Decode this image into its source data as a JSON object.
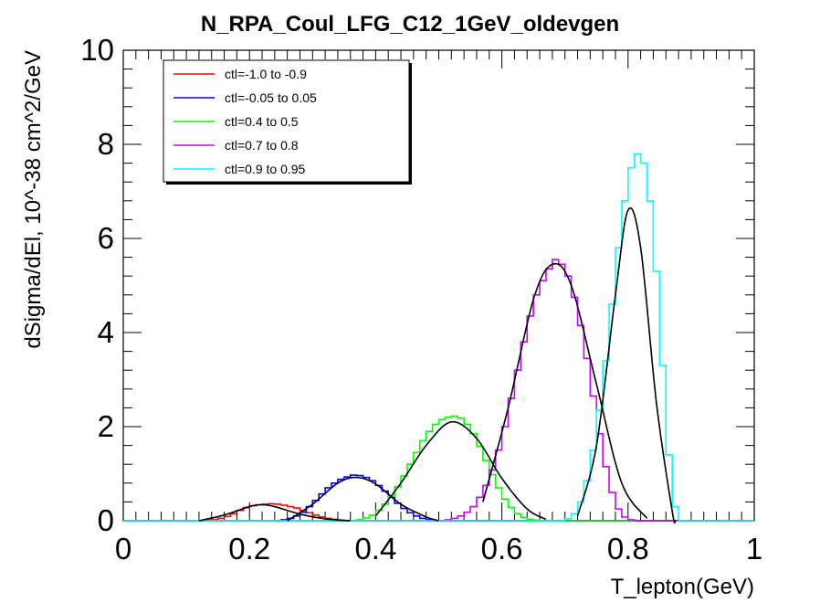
{
  "chart_data": {
    "type": "line",
    "title": "N_RPA_Coul_LFG_C12_1GeV_oldevgen",
    "xlabel": "T_lepton(GeV)",
    "ylabel": "dSigma/dEl, 10^-38 cm^2/GeV",
    "xlim": [
      0,
      1
    ],
    "ylim": [
      0,
      10
    ],
    "x_ticks": [
      "0",
      "0.2",
      "0.4",
      "0.6",
      "0.8",
      "1"
    ],
    "y_ticks": [
      "0",
      "2",
      "4",
      "6",
      "8",
      "10"
    ],
    "legend_placement": "top-left",
    "bin_width": 0.01,
    "series": [
      {
        "name": "ctl=-1.0 to -0.9",
        "color": "#ff0000",
        "style": "step",
        "x_start": 0.12,
        "values": [
          0.0,
          0.01,
          0.02,
          0.05,
          0.09,
          0.15,
          0.22,
          0.28,
          0.32,
          0.34,
          0.35,
          0.36,
          0.35,
          0.33,
          0.3,
          0.27,
          0.22,
          0.17,
          0.12,
          0.08,
          0.05,
          0.03,
          0.01,
          0.0
        ]
      },
      {
        "name": "ctl=-0.05 to 0.05",
        "color": "#0000ff",
        "style": "step",
        "x_start": 0.24,
        "values": [
          0.0,
          0.02,
          0.05,
          0.1,
          0.18,
          0.3,
          0.43,
          0.57,
          0.7,
          0.8,
          0.88,
          0.93,
          0.97,
          0.96,
          0.92,
          0.85,
          0.75,
          0.63,
          0.5,
          0.37,
          0.26,
          0.17,
          0.1,
          0.05,
          0.02,
          0.0
        ]
      },
      {
        "name": "ctl=0.4 to 0.5",
        "color": "#00ff00",
        "style": "step",
        "x_start": 0.36,
        "values": [
          0.0,
          0.02,
          0.06,
          0.12,
          0.22,
          0.35,
          0.52,
          0.72,
          0.95,
          1.2,
          1.45,
          1.7,
          1.9,
          2.05,
          2.15,
          2.2,
          2.22,
          2.18,
          2.05,
          1.85,
          1.58,
          1.28,
          0.98,
          0.7,
          0.46,
          0.28,
          0.15,
          0.07,
          0.03,
          0.01,
          0.0
        ]
      },
      {
        "name": "ctl=0.7 to 0.8",
        "color": "#cc00ff",
        "style": "step",
        "x_start": 0.5,
        "values": [
          0.0,
          0.02,
          0.05,
          0.1,
          0.18,
          0.3,
          0.5,
          0.75,
          1.08,
          1.5,
          2.0,
          2.6,
          3.2,
          3.8,
          4.35,
          4.8,
          5.1,
          5.35,
          5.55,
          5.45,
          5.2,
          4.75,
          4.15,
          3.45,
          2.65,
          1.85,
          1.15,
          0.6,
          0.25,
          0.08,
          0.02,
          0.0
        ]
      },
      {
        "name": "ctl=0.9 to 0.95",
        "color": "#00ffff",
        "style": "step",
        "x_start": 0.69,
        "values": [
          0.0,
          0.04,
          0.15,
          0.4,
          0.85,
          1.5,
          2.35,
          3.4,
          4.6,
          5.8,
          6.8,
          7.5,
          7.8,
          7.6,
          6.8,
          5.3,
          3.3,
          1.4,
          0.3,
          0.0
        ]
      }
    ],
    "fits": [
      {
        "color": "#000000",
        "style": "smooth",
        "x": [
          0.12,
          0.16,
          0.2,
          0.22,
          0.24,
          0.28,
          0.32,
          0.36
        ],
        "y": [
          0.0,
          0.12,
          0.3,
          0.34,
          0.3,
          0.14,
          0.04,
          0.0
        ]
      },
      {
        "color": "#000000",
        "style": "smooth",
        "x": [
          0.26,
          0.3,
          0.34,
          0.37,
          0.4,
          0.44,
          0.48,
          0.5
        ],
        "y": [
          0.0,
          0.35,
          0.8,
          0.92,
          0.78,
          0.35,
          0.08,
          0.0
        ]
      },
      {
        "color": "#000000",
        "style": "smooth",
        "x": [
          0.4,
          0.44,
          0.48,
          0.52,
          0.56,
          0.6,
          0.64,
          0.67
        ],
        "y": [
          0.1,
          0.8,
          1.6,
          2.1,
          1.75,
          0.9,
          0.25,
          0.03
        ]
      },
      {
        "color": "#000000",
        "style": "smooth",
        "x": [
          0.57,
          0.61,
          0.65,
          0.68,
          0.71,
          0.75,
          0.79,
          0.83
        ],
        "y": [
          0.4,
          2.4,
          4.7,
          5.45,
          5.0,
          2.9,
          0.8,
          0.05
        ]
      },
      {
        "color": "#000000",
        "style": "smooth",
        "x": [
          0.72,
          0.75,
          0.78,
          0.8,
          0.82,
          0.845,
          0.87,
          0.875
        ],
        "y": [
          0.1,
          1.6,
          4.8,
          6.6,
          5.8,
          2.5,
          0.2,
          0.0
        ]
      }
    ]
  }
}
